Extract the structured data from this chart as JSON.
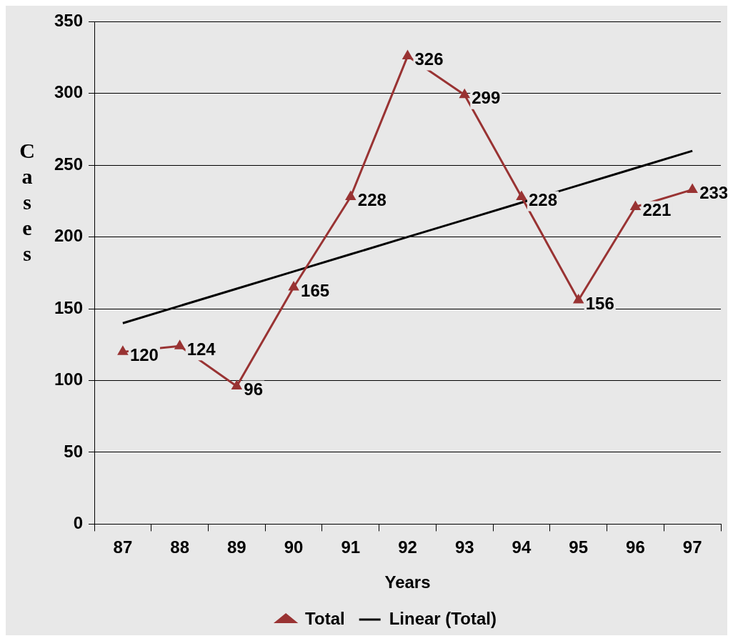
{
  "chart_data": {
    "type": "line",
    "categories": [
      "87",
      "88",
      "89",
      "90",
      "91",
      "92",
      "93",
      "94",
      "95",
      "96",
      "97"
    ],
    "xlabel": "Years",
    "ylabel": "Cases",
    "ylim": [
      0,
      350
    ],
    "yticks": [
      0,
      50,
      100,
      150,
      200,
      250,
      300,
      350
    ],
    "grid": "y",
    "legend": "bottom",
    "line_style": "solid",
    "series": [
      {
        "name": "Total",
        "color": "#993333",
        "marker": "triangle",
        "values": [
          120,
          124,
          96,
          165,
          228,
          326,
          299,
          228,
          156,
          221,
          233
        ],
        "value_labels": [
          "120",
          "124",
          "96",
          "165",
          "228",
          "326",
          "299",
          "228",
          "156",
          "221",
          "233"
        ]
      },
      {
        "name": "Linear (Total)",
        "type": "line",
        "color": "#000000",
        "marker": "none",
        "values": [
          140,
          152,
          164,
          176,
          188,
          200,
          212,
          224,
          236,
          248,
          260
        ]
      }
    ]
  }
}
